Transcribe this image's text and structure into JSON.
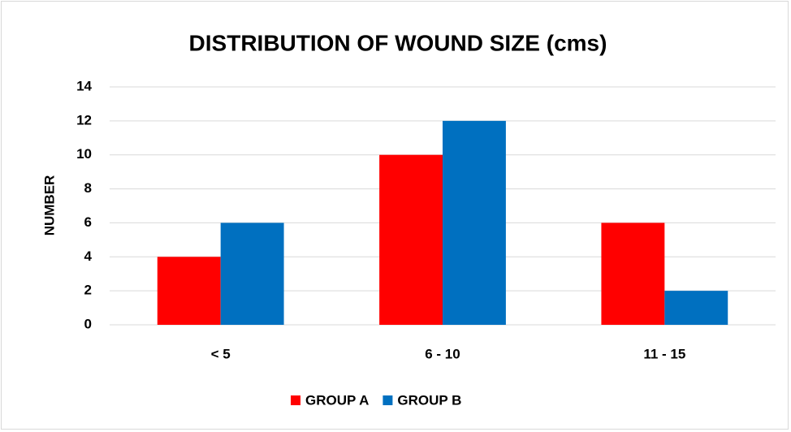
{
  "chart_data": {
    "type": "bar",
    "title": "DISTRIBUTION OF WOUND SIZE (cms)",
    "y_label": "NUMBER",
    "categories": [
      "< 5",
      "6 - 10",
      "11 - 15"
    ],
    "series": [
      {
        "name": "GROUP A",
        "color": "#ff0000",
        "values": [
          4,
          10,
          6
        ]
      },
      {
        "name": "GROUP B",
        "color": "#0070c0",
        "values": [
          6,
          12,
          2
        ]
      }
    ],
    "ylim": [
      0,
      14
    ],
    "yticks": [
      0,
      2,
      4,
      6,
      8,
      10,
      12,
      14
    ],
    "grid": true,
    "legend": "bottom"
  }
}
